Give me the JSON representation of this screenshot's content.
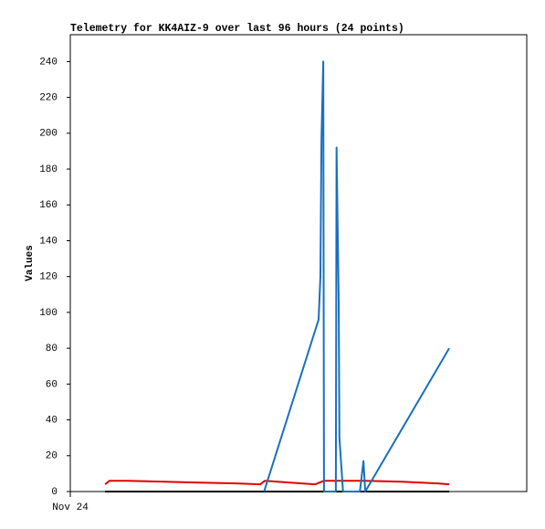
{
  "chart_data": {
    "type": "line",
    "title": "Telemetry for KK4AIZ-9 over last 96 hours (24 points)",
    "y_label": "Values",
    "xlim": [
      0,
      127.2
    ],
    "xticks": [
      {
        "value": 0,
        "label": "Nov 24"
      }
    ],
    "ylim": [
      0,
      255
    ],
    "yticks": [
      0,
      20,
      40,
      60,
      80,
      100,
      120,
      140,
      160,
      180,
      200,
      220,
      240
    ],
    "series": [
      {
        "color": "#000000",
        "x": [
          9.7,
          105.6
        ],
        "values": [
          0,
          0
        ]
      },
      {
        "color": "#e00000",
        "x": [
          9.7,
          10.9,
          16,
          26.2,
          36.4,
          46.6,
          52.9,
          54.2,
          68.2,
          70.7,
          82.2,
          92.4,
          102.5,
          105.6
        ],
        "values": [
          4,
          6,
          6,
          5.5,
          5,
          4.5,
          4,
          6,
          4,
          6,
          6,
          5.5,
          4.5,
          4
        ]
      },
      {
        "color": "#1a6fc0",
        "x": [
          54,
          69.2,
          69.7,
          70,
          70.5,
          70.7,
          74,
          74.2,
          74.8,
          75,
          76,
          80.7,
          81.7,
          82.2,
          105.6
        ],
        "values": [
          0,
          96,
          120,
          197,
          240,
          0,
          0,
          192,
          105,
          30,
          0,
          0,
          17,
          0,
          80
        ]
      }
    ]
  }
}
